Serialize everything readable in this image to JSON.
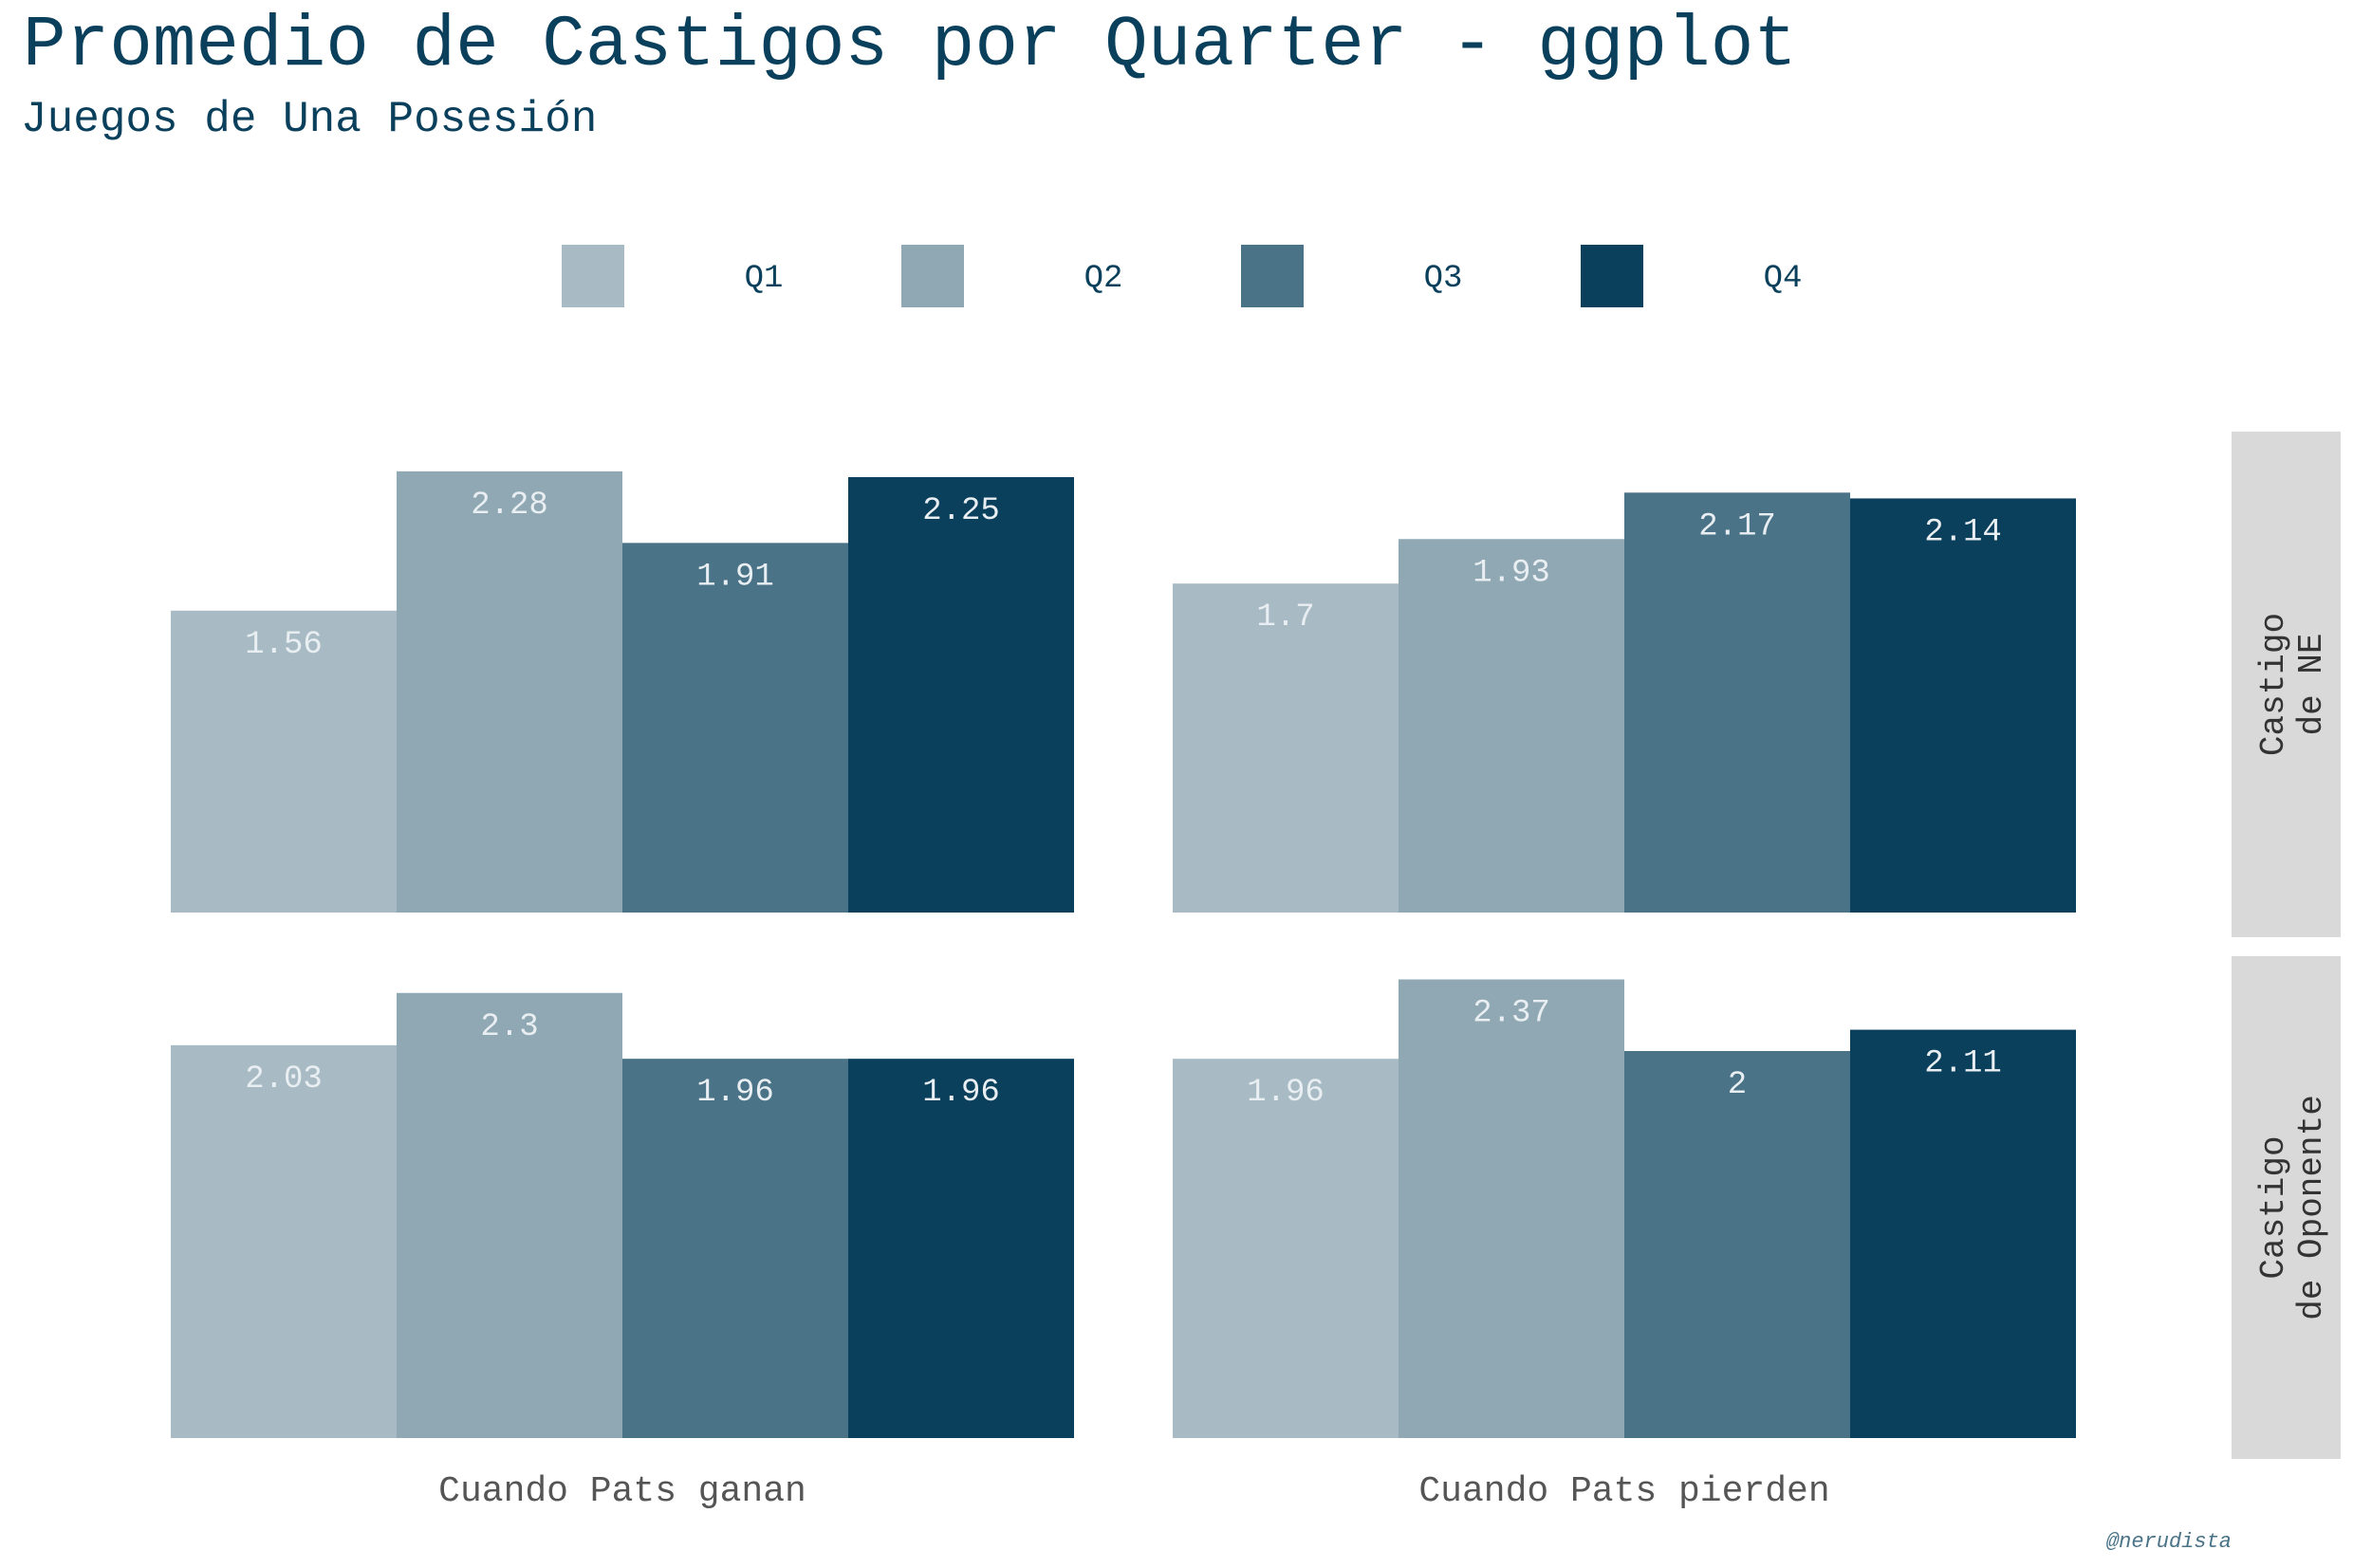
{
  "chart_data": {
    "type": "bar",
    "title": "Promedio de Castigos por Quarter - ggplot",
    "subtitle": "Juegos de Una Posesión",
    "caption": "@nerudista",
    "legend": {
      "position": "top",
      "items": [
        "Q1",
        "Q2",
        "Q3",
        "Q4"
      ]
    },
    "colors": {
      "Q1": "#a8bbc4",
      "Q2": "#8fa8b3",
      "Q3": "#4a7388",
      "Q4": "#0a405c",
      "text_main": "#0a405c",
      "text_axis": "#555555",
      "strip_bg": "#d9d9d9",
      "label": "#e8eef1"
    },
    "columns": [
      "Cuando Pats ganan",
      "Cuando Pats pierden"
    ],
    "rows": [
      {
        "label_line1": "Castigo",
        "label_line2": "de NE"
      },
      {
        "label_line1": "Castigo",
        "label_line2": "de Oponente"
      }
    ],
    "ylim": [
      0,
      2.5
    ],
    "panels": [
      {
        "row": 0,
        "col": 0,
        "values": [
          1.56,
          2.28,
          1.91,
          2.25
        ],
        "labels": [
          "1.56",
          "2.28",
          "1.91",
          "2.25"
        ]
      },
      {
        "row": 0,
        "col": 1,
        "values": [
          1.7,
          1.93,
          2.17,
          2.14
        ],
        "labels": [
          "1.7",
          "1.93",
          "2.17",
          "2.14"
        ]
      },
      {
        "row": 1,
        "col": 0,
        "values": [
          2.03,
          2.3,
          1.96,
          1.96
        ],
        "labels": [
          "2.03",
          "2.3",
          "1.96",
          "1.96"
        ]
      },
      {
        "row": 1,
        "col": 1,
        "values": [
          1.96,
          2.37,
          2.0,
          2.11
        ],
        "labels": [
          "1.96",
          "2.37",
          "2",
          "2.11"
        ]
      }
    ]
  }
}
